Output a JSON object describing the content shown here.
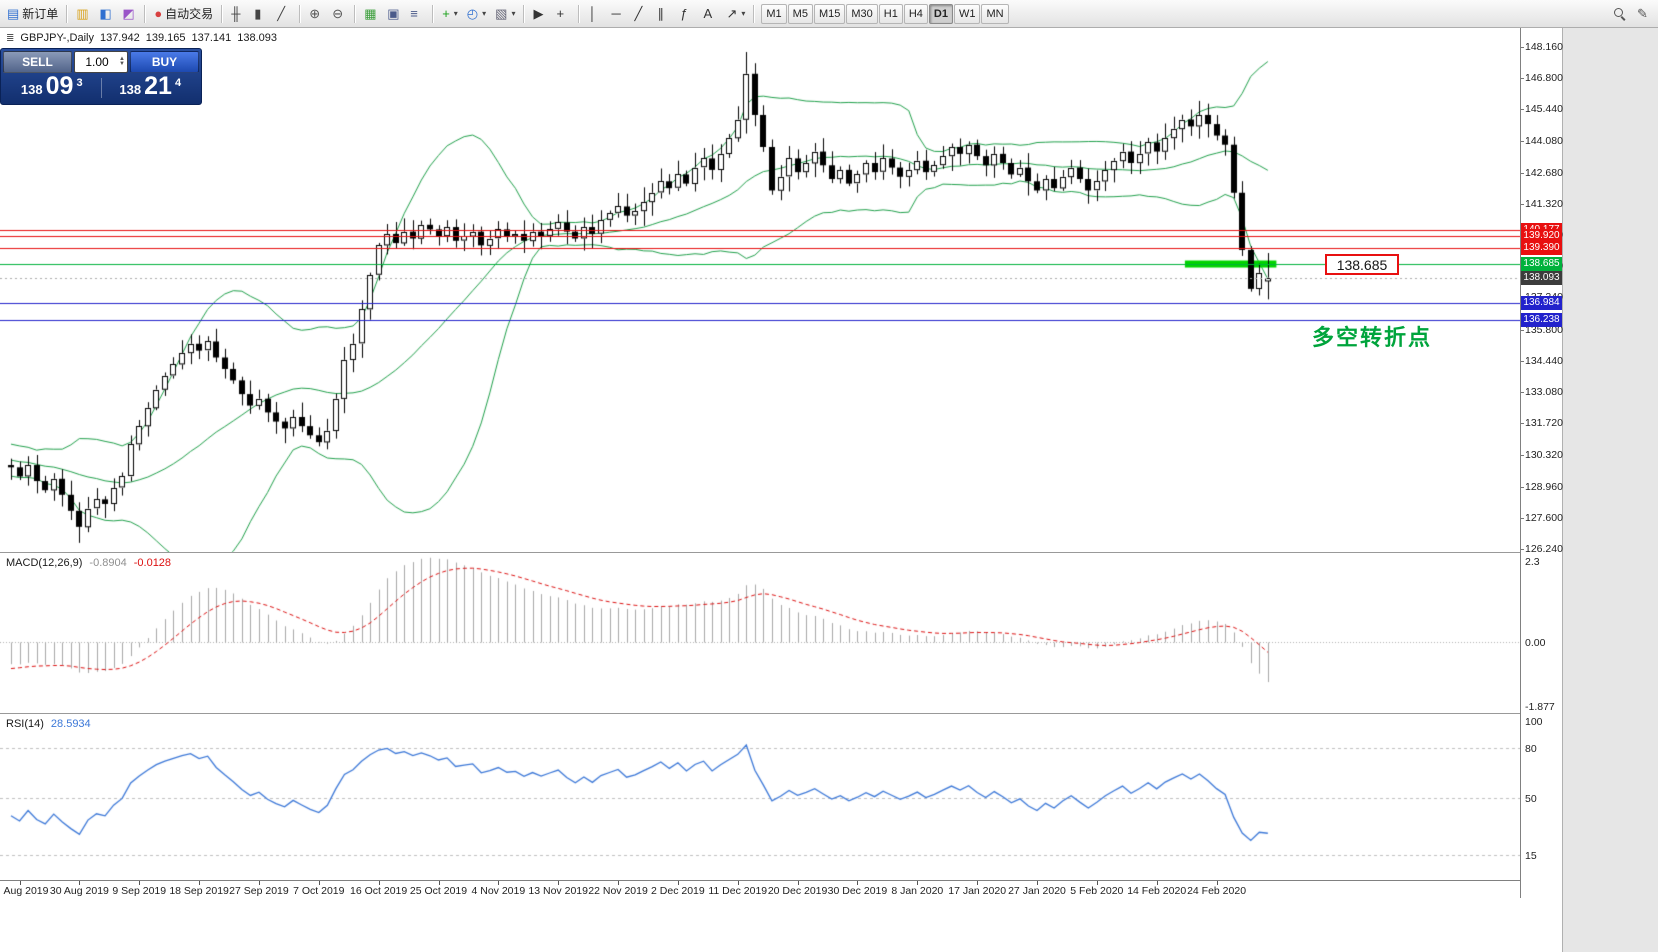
{
  "toolbar": {
    "items": [
      {
        "type": "btn",
        "name": "new-order",
        "glyph": "▤",
        "color": "#2f6fd0",
        "label": "新订单"
      },
      {
        "type": "sep"
      },
      {
        "type": "btn",
        "name": "profiles",
        "glyph": "▥",
        "color": "#d9a21b"
      },
      {
        "type": "btn",
        "name": "market-watch",
        "glyph": "◧",
        "color": "#2f6fd0"
      },
      {
        "type": "btn",
        "name": "data-window",
        "glyph": "◩",
        "color": "#9a55c8"
      },
      {
        "type": "sep"
      },
      {
        "type": "btn",
        "name": "auto-trading",
        "glyph": "●",
        "color": "#d84040",
        "label": "自动交易"
      },
      {
        "type": "sep"
      },
      {
        "type": "btn",
        "name": "chart-bars-mode",
        "glyph": "╫",
        "color": "#444"
      },
      {
        "type": "btn",
        "name": "chart-candles-mode",
        "glyph": "▮",
        "color": "#444"
      },
      {
        "type": "btn",
        "name": "chart-line-mode",
        "glyph": "╱",
        "color": "#444"
      },
      {
        "type": "sep"
      },
      {
        "type": "btn",
        "name": "zoom-in",
        "glyph": "⊕",
        "color": "#555"
      },
      {
        "type": "btn",
        "name": "zoom-out",
        "glyph": "⊖",
        "color": "#555"
      },
      {
        "type": "sep"
      },
      {
        "type": "btn",
        "name": "auto-arrange",
        "glyph": "▦",
        "color": "#3a9e3a"
      },
      {
        "type": "btn",
        "name": "tile-windows",
        "glyph": "▣",
        "color": "#4a5a8a"
      },
      {
        "type": "btn",
        "name": "window-list",
        "glyph": "≡",
        "color": "#4a5a8a"
      },
      {
        "type": "sep"
      },
      {
        "type": "btn",
        "name": "add-indicator",
        "glyph": "+",
        "color": "#18a018",
        "dropdown": true
      },
      {
        "type": "btn",
        "name": "period-selector",
        "glyph": "◴",
        "color": "#2f6fd0",
        "dropdown": true
      },
      {
        "type": "btn",
        "name": "template-selector",
        "glyph": "▧",
        "color": "#667",
        "dropdown": true
      },
      {
        "type": "sep"
      },
      {
        "type": "btn",
        "name": "cursor-tool",
        "glyph": "▶",
        "color": "#333"
      },
      {
        "type": "btn",
        "name": "crosshair-tool",
        "glyph": "+",
        "color": "#333"
      },
      {
        "type": "sep"
      },
      {
        "type": "btn",
        "name": "vline-tool",
        "glyph": "│",
        "color": "#333"
      },
      {
        "type": "btn",
        "name": "hline-tool",
        "glyph": "─",
        "color": "#333"
      },
      {
        "type": "btn",
        "name": "trendline-tool",
        "glyph": "╱",
        "color": "#333"
      },
      {
        "type": "btn",
        "name": "channel-tool",
        "glyph": "∥",
        "color": "#333"
      },
      {
        "type": "btn",
        "name": "fibonacci-tool",
        "glyph": "ƒ",
        "color": "#333"
      },
      {
        "type": "btn",
        "name": "text-tool",
        "glyph": "A",
        "color": "#333"
      },
      {
        "type": "btn",
        "name": "arrows-tool",
        "glyph": "↗",
        "color": "#333",
        "dropdown": true
      },
      {
        "type": "sep"
      }
    ],
    "timeframes": [
      "M1",
      "M5",
      "M15",
      "M30",
      "H1",
      "H4",
      "D1",
      "W1",
      "MN"
    ],
    "active_timeframe": "D1",
    "right_items": [
      {
        "type": "btn",
        "name": "search",
        "glyph": "mag"
      },
      {
        "type": "btn",
        "name": "quick-edit",
        "glyph": "✎",
        "color": "#555"
      }
    ]
  },
  "quote": {
    "icon_glyph": "≣",
    "symbol": "GBPJPY-,Daily",
    "open": "137.942",
    "high": "139.165",
    "low": "137.141",
    "close": "138.093"
  },
  "trade_panel": {
    "sell_label": "SELL",
    "buy_label": "BUY",
    "volume": "1.00",
    "spinner_up": "▲",
    "spinner_down": "▼",
    "bid": {
      "big": "138",
      "pips": "09",
      "frac": "3"
    },
    "ask": {
      "big": "138",
      "pips": "21",
      "frac": "4"
    }
  },
  "annotations": {
    "level_label": "138.685",
    "turning_point": "多空转折点"
  },
  "macd_panel": {
    "label": "MACD(12,26,9)",
    "value_main": "-0.8904",
    "value_signal": "-0.0128",
    "scale": [
      {
        "label": "2.3",
        "value": 2.3
      },
      {
        "label": "0.00",
        "value": 0
      },
      {
        "label": "-1.877",
        "value": -1.877
      }
    ]
  },
  "rsi_panel": {
    "label": "RSI(14)",
    "value": "28.5934",
    "scale": [
      {
        "label": "100",
        "value": 100
      },
      {
        "label": "80",
        "value": 80
      },
      {
        "label": "50",
        "value": 50
      },
      {
        "label": "15",
        "value": 15
      }
    ]
  },
  "chart_data": {
    "type": "candlestick",
    "symbol": "GBPJPY-",
    "period": "Daily",
    "ylim": [
      126.1,
      149.0
    ],
    "price_ticks": [
      "148.160",
      "146.800",
      "145.440",
      "144.080",
      "142.680",
      "141.320",
      "139.960",
      "138.600",
      "137.240",
      "135.800",
      "134.440",
      "133.080",
      "131.720",
      "130.320",
      "128.960",
      "127.600",
      "126.240"
    ],
    "dates": [
      "Aug 2019",
      "30 Aug 2019",
      "9 Sep 2019",
      "18 Sep 2019",
      "27 Sep 2019",
      "7 Oct 2019",
      "16 Oct 2019",
      "25 Oct 2019",
      "4 Nov 2019",
      "13 Nov 2019",
      "22 Nov 2019",
      "2 Dec 2019",
      "11 Dec 2019",
      "20 Dec 2019",
      "30 Dec 2019",
      "8 Jan 2020",
      "17 Jan 2020",
      "27 Jan 2020",
      "5 Feb 2020",
      "14 Feb 2020",
      "24 Feb 2020"
    ],
    "bars_per_label": 7,
    "first_label_bar": 1,
    "pre_closes": [
      134.8,
      134.5,
      134.9,
      134.2,
      133.8,
      134.0,
      133.5,
      133.1,
      133.4,
      132.9,
      132.5,
      132.8,
      132.3,
      131.9,
      132.2,
      131.7,
      131.4,
      131.8,
      131.2,
      130.9,
      131.3,
      130.8,
      130.5,
      130.9,
      130.4,
      130.1,
      130.5,
      130.0,
      129.7,
      130.1,
      129.8,
      130.2,
      129.9,
      130.3,
      130.0,
      129.6,
      130.0,
      129.7,
      130.1,
      129.9
    ],
    "closes": [
      129.8,
      129.4,
      129.9,
      129.2,
      128.8,
      129.3,
      128.6,
      127.9,
      127.2,
      128.0,
      128.4,
      128.2,
      128.9,
      129.4,
      130.8,
      131.6,
      132.4,
      133.2,
      133.8,
      134.3,
      134.8,
      135.2,
      134.9,
      135.3,
      134.6,
      134.1,
      133.6,
      133.0,
      132.5,
      132.8,
      132.2,
      131.8,
      131.5,
      132.0,
      131.6,
      131.2,
      130.9,
      131.4,
      132.8,
      134.5,
      135.2,
      136.7,
      138.2,
      139.5,
      140.0,
      139.6,
      140.1,
      139.8,
      140.4,
      140.2,
      139.9,
      140.3,
      139.7,
      139.9,
      140.1,
      139.5,
      139.8,
      140.2,
      139.9,
      140.0,
      139.7,
      140.1,
      139.9,
      140.2,
      140.5,
      140.1,
      139.8,
      140.3,
      140.0,
      140.6,
      140.9,
      141.2,
      140.8,
      141.0,
      141.4,
      141.8,
      142.3,
      142.0,
      142.6,
      142.2,
      142.9,
      143.3,
      142.8,
      143.5,
      144.2,
      145.0,
      147.0,
      145.2,
      143.8,
      141.9,
      142.5,
      143.3,
      142.7,
      143.1,
      143.6,
      143.0,
      142.4,
      142.8,
      142.2,
      142.6,
      143.1,
      142.7,
      143.3,
      142.9,
      142.5,
      142.8,
      143.2,
      142.7,
      143.0,
      143.4,
      143.8,
      143.5,
      143.9,
      143.4,
      143.0,
      143.5,
      143.1,
      142.6,
      142.9,
      142.3,
      141.9,
      142.4,
      142.0,
      142.5,
      142.9,
      142.4,
      141.9,
      142.3,
      142.8,
      143.2,
      143.6,
      143.1,
      143.5,
      144.0,
      143.6,
      144.2,
      144.6,
      145.0,
      144.7,
      145.2,
      144.8,
      144.3,
      143.9,
      141.8,
      139.3,
      137.6,
      138.3,
      138.093
    ],
    "overrides": {
      "8": {
        "low": 126.5
      },
      "86": {
        "high": 147.95
      },
      "147": {
        "open": 137.942,
        "high": 139.165,
        "low": 137.141
      }
    },
    "levels": [
      {
        "price": 140.177,
        "label": "140.177",
        "color": "#e81010"
      },
      {
        "price": 139.92,
        "label": "139.920",
        "color": "#e81010"
      },
      {
        "price": 139.39,
        "label": "139.390",
        "color": "#e81010"
      },
      {
        "price": 138.685,
        "label": "138.685",
        "color": "#00b23c"
      },
      {
        "price": 136.984,
        "label": "136.984",
        "color": "#2222cc"
      },
      {
        "price": 136.238,
        "label": "136.238",
        "color": "#2222cc"
      }
    ],
    "current_price": {
      "price": 138.093,
      "label": "138.093",
      "color": "#3c3c3c"
    },
    "highlight": {
      "price": 138.685,
      "from_bar": 138,
      "to_bar": 148,
      "color": "#00d400",
      "thickness": 7
    },
    "bollinger": {
      "period": 20,
      "deviation": 2,
      "color": "#1fa04a"
    },
    "macd": {
      "fast": 12,
      "slow": 26,
      "signal": 9,
      "range": [
        -1.877,
        2.3
      ],
      "hist_color": "#a8a8a8",
      "signal_color": "#dd1111"
    },
    "rsi": {
      "period": 14,
      "range": [
        0,
        100
      ],
      "levels": [
        80,
        50,
        15
      ],
      "color": "#3c78d8"
    }
  }
}
